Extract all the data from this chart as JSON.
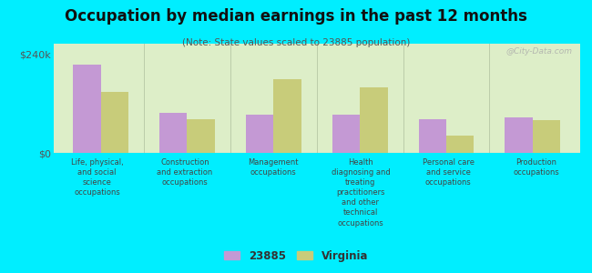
{
  "title": "Occupation by median earnings in the past 12 months",
  "subtitle": "(Note: State values scaled to 23885 population)",
  "categories": [
    "Life, physical,\nand social\nscience\noccupations",
    "Construction\nand extraction\noccupations",
    "Management\noccupations",
    "Health\ndiagnosing and\ntreating\npractitioners\nand other\ntechnical\noccupations",
    "Personal care\nand service\noccupations",
    "Production\noccupations"
  ],
  "values_23885": [
    215000,
    97000,
    92000,
    93000,
    82000,
    87000
  ],
  "values_virginia": [
    148000,
    82000,
    178000,
    158000,
    42000,
    80000
  ],
  "color_23885": "#c499d4",
  "color_virginia": "#c8cc7a",
  "ylim": [
    0,
    265000
  ],
  "yticks": [
    0,
    240000
  ],
  "ytick_labels": [
    "$0",
    "$240k"
  ],
  "background_color": "#00eeff",
  "plot_bg_color_top": "#e8f0d0",
  "plot_bg_color_bottom": "#d8eee0",
  "watermark": "@City-Data.com",
  "legend_label_1": "23885",
  "legend_label_2": "Virginia"
}
